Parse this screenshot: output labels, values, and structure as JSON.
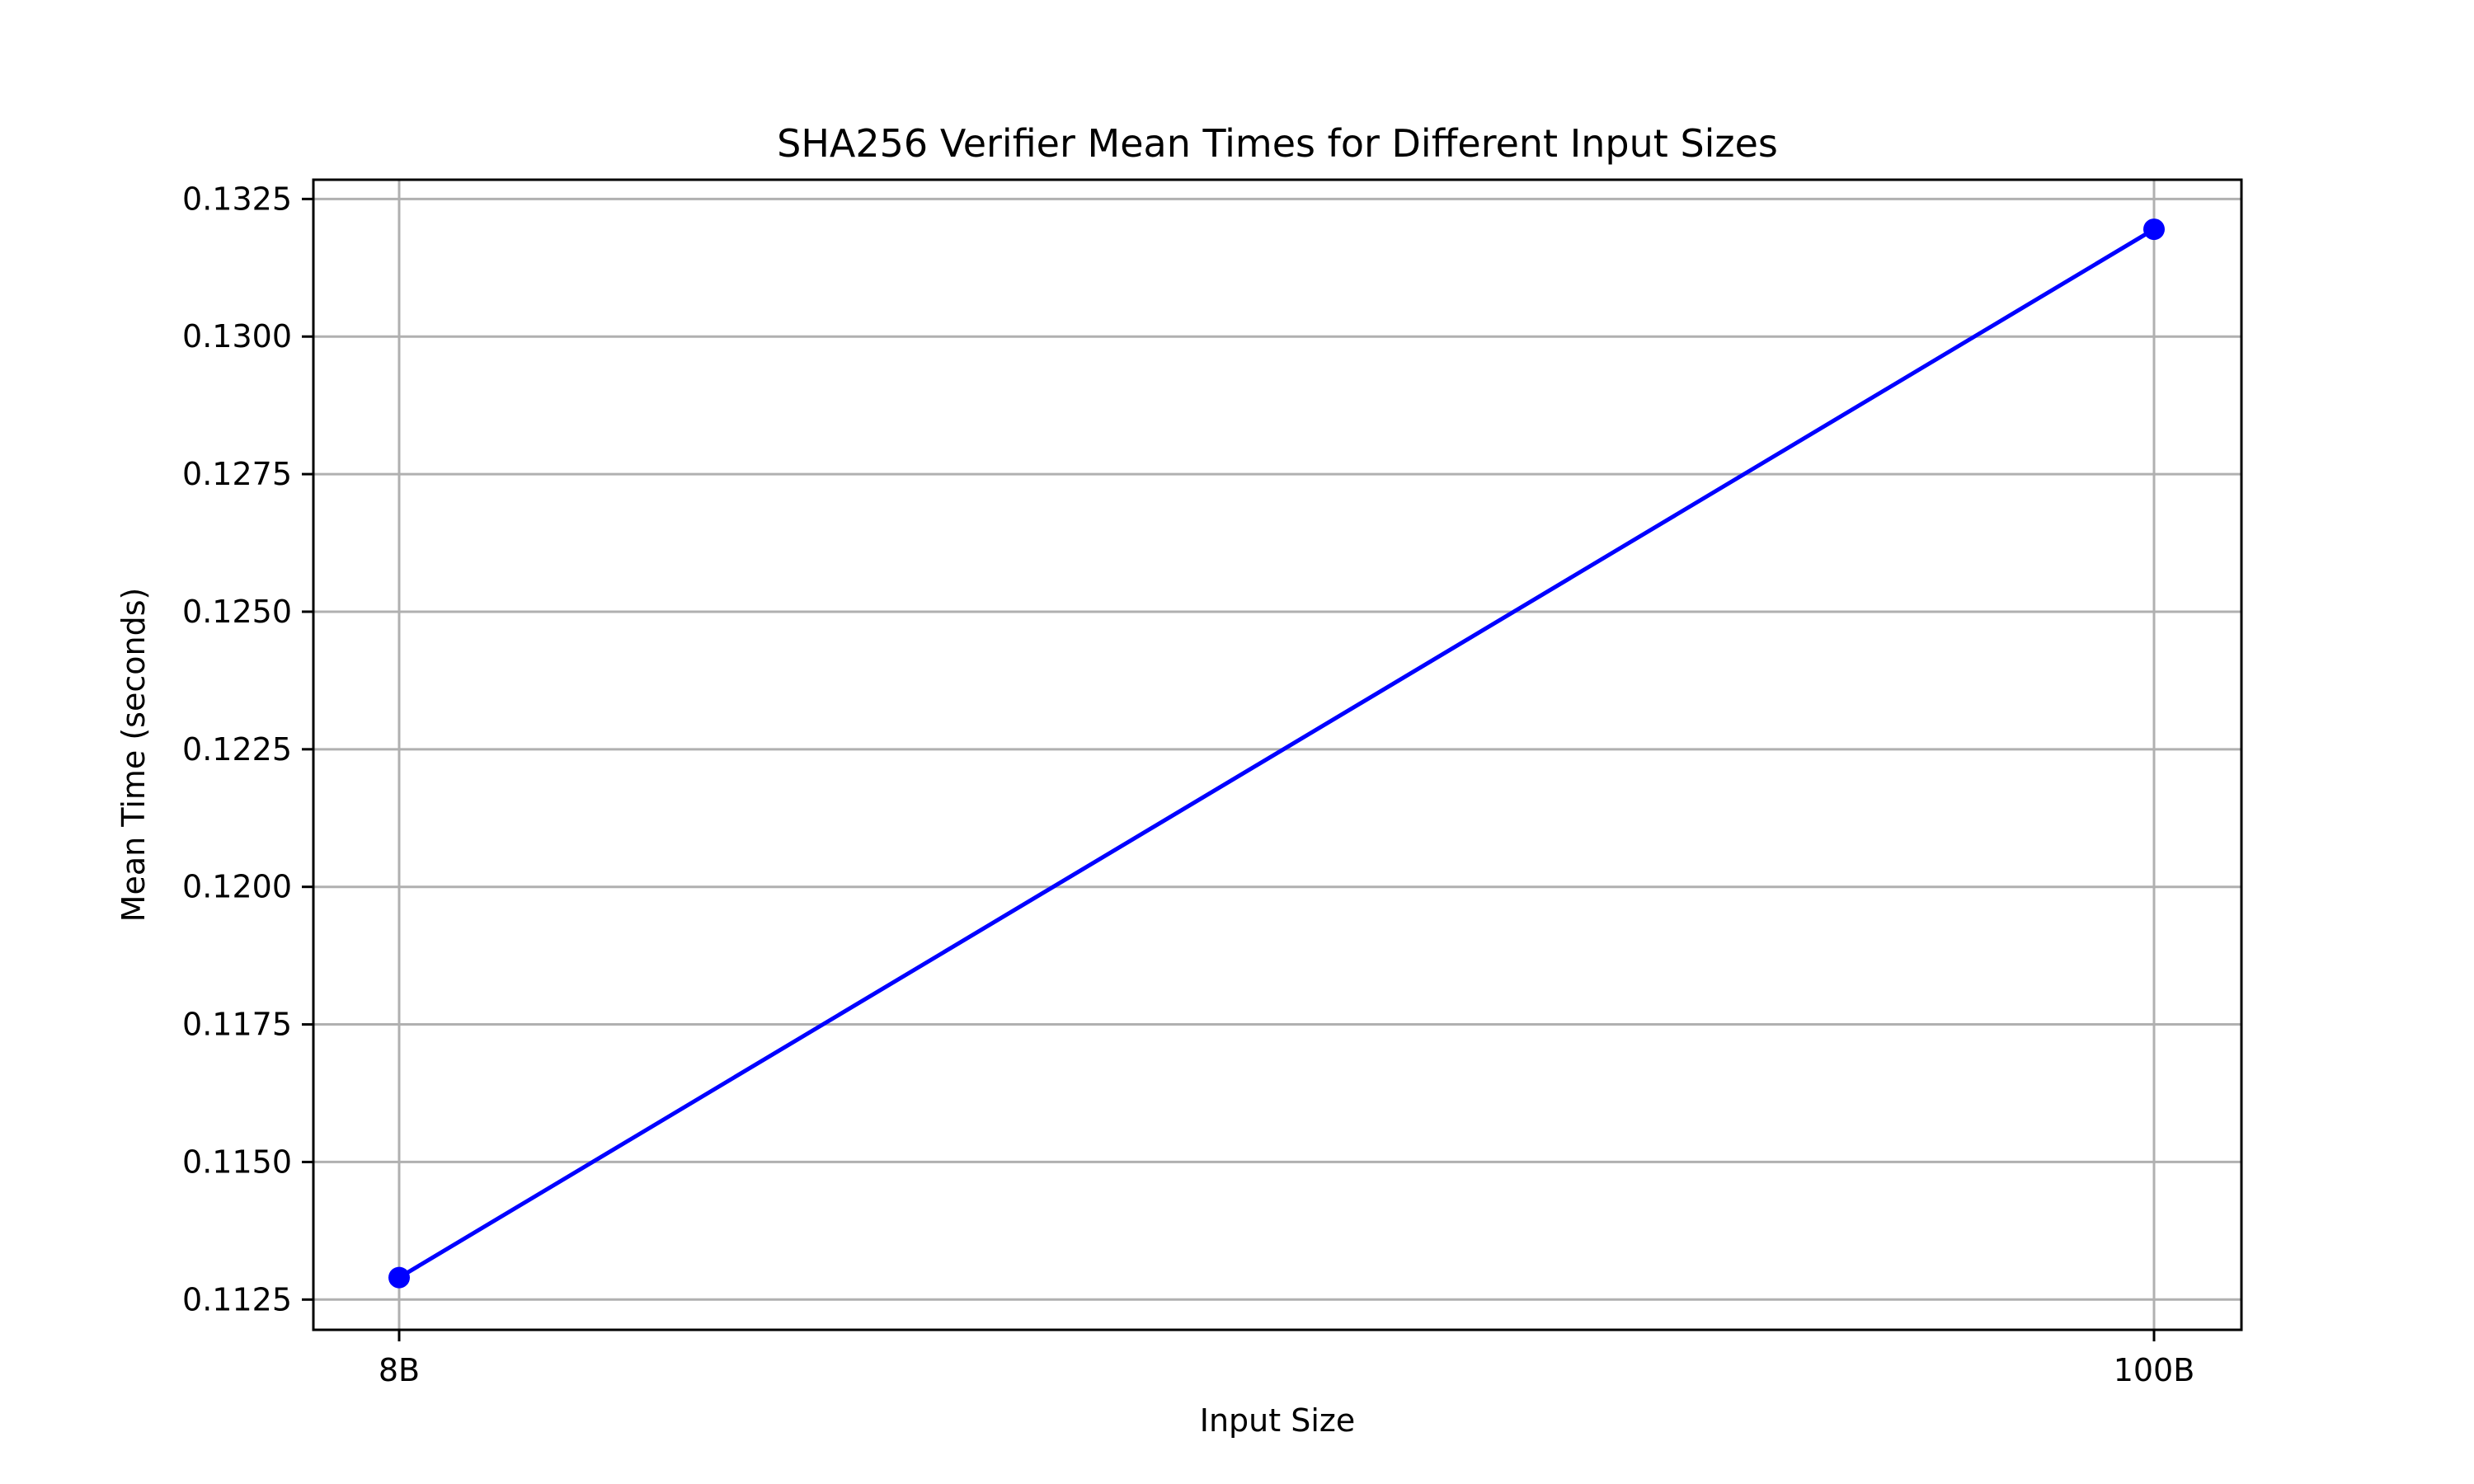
{
  "chart_data": {
    "type": "line",
    "title": "SHA256 Verifier Mean Times for Different Input Sizes",
    "xlabel": "Input Size",
    "ylabel": "Mean Time (seconds)",
    "categories": [
      "8B",
      "100B"
    ],
    "series": [
      {
        "values": [
          0.1129,
          0.13195
        ],
        "color": "#0000ff",
        "marker": "circle"
      }
    ],
    "ylim": [
      0.11195,
      0.13285
    ],
    "yticks": [
      0.1125,
      0.115,
      0.1175,
      0.12,
      0.1225,
      0.125,
      0.1275,
      0.13,
      0.1325
    ],
    "ytick_labels": [
      "0.1125",
      "0.1150",
      "0.1175",
      "0.1200",
      "0.1225",
      "0.1250",
      "0.1275",
      "0.1300",
      "0.1325"
    ],
    "grid": true,
    "legend": "none"
  }
}
